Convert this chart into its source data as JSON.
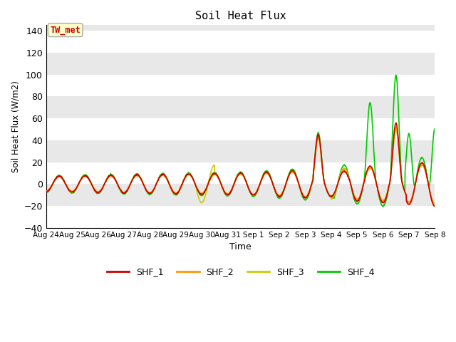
{
  "title": "Soil Heat Flux",
  "ylabel": "Soil Heat Flux (W/m2)",
  "xlabel": "Time",
  "ylim": [
    -40,
    145
  ],
  "yticks": [
    -40,
    -20,
    0,
    20,
    40,
    60,
    80,
    100,
    120,
    140
  ],
  "annotation_text": "TW_met",
  "annotation_color": "#cc0000",
  "annotation_bg": "#ffffcc",
  "annotation_border": "#aaaaaa",
  "colors": {
    "SHF_1": "#cc0000",
    "SHF_2": "#ff9900",
    "SHF_3": "#cccc00",
    "SHF_4": "#00cc00"
  },
  "bg_color": "#e8e8e8",
  "band_color": "#d8d8d8",
  "grid_color": "#ffffff",
  "num_days": 15,
  "points_per_day": 96,
  "xtick_labels": [
    "Aug 24",
    "Aug 25",
    "Aug 26",
    "Aug 27",
    "Aug 28",
    "Aug 29",
    "Aug 30",
    "Aug 31",
    "Sep 1",
    "Sep 2",
    "Sep 3",
    "Sep 4",
    "Sep 5",
    "Sep 6",
    "Sep 7",
    "Sep 8"
  ]
}
